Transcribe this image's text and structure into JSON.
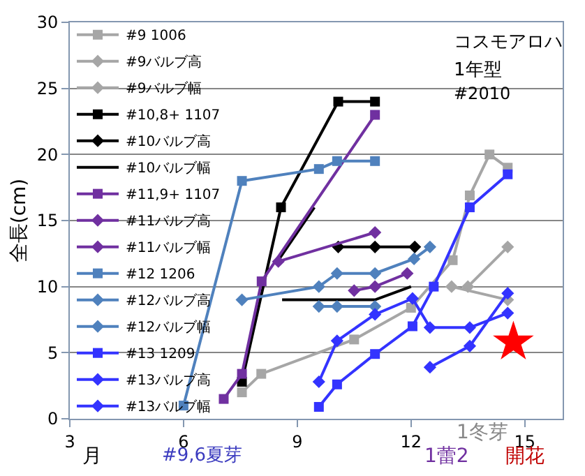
{
  "chart_data": {
    "type": "line",
    "ylabel": "全長(cm)",
    "xlim": [
      3,
      16
    ],
    "ylim": [
      0,
      30
    ],
    "xticks": [
      3,
      6,
      9,
      12,
      15
    ],
    "yticks": [
      0,
      5,
      10,
      15,
      20,
      25,
      30
    ],
    "grid": "y",
    "legend": "left",
    "line_style": "solid",
    "annotations": [
      "コスモアロハ",
      "1年型",
      "#2010",
      "月",
      "#9,6夏芽",
      "1冬芽",
      "1蕾2",
      "開花"
    ],
    "series": [
      {
        "name": "#9 1006",
        "color": "#a6a6a6",
        "marker": "square",
        "x": [
          7.54,
          8.05,
          10.5,
          12.0,
          13.1,
          13.55,
          14.07,
          14.55
        ],
        "values": [
          2.0,
          3.4,
          6.0,
          8.4,
          12.0,
          16.9,
          20.0,
          19.0
        ]
      },
      {
        "name": "#9バルブ高",
        "color": "#a6a6a6",
        "marker": "diamond",
        "x": [
          13.5,
          14.55
        ],
        "values": [
          10.0,
          13.0
        ]
      },
      {
        "name": "#9バルブ幅",
        "color": "#a6a6a6",
        "marker": "diamond",
        "x": [
          13.07,
          14.55
        ],
        "values": [
          10.0,
          9.0
        ]
      },
      {
        "name": "#10,8+ 1107",
        "color": "#000000",
        "marker": "square",
        "x": [
          7.54,
          8.57,
          10.08,
          11.05
        ],
        "values": [
          2.8,
          16.0,
          24.0,
          24.0
        ]
      },
      {
        "name": "#10バルブ高",
        "color": "#000000",
        "marker": "diamond",
        "x": [
          10.08,
          11.05,
          12.1
        ],
        "values": [
          13.0,
          13.0,
          13.0
        ]
      },
      {
        "name": "#10バルブ幅",
        "color": "#000000",
        "marker": "none",
        "x": [
          8.5,
          9.45,
          9.0,
          8.6,
          11.05,
          12.0
        ],
        "values": [
          12.0,
          16.0,
          null,
          9.0,
          9.0,
          10.0
        ]
      },
      {
        "name": "#11,9+ 1107",
        "color": "#7030a0",
        "marker": "square",
        "x": [
          7.06,
          7.54,
          8.06,
          11.05
        ],
        "values": [
          1.5,
          3.4,
          10.4,
          23.0
        ]
      },
      {
        "name": "#11バルブ高",
        "color": "#7030a0",
        "marker": "diamond",
        "x": [
          10.5,
          11.05,
          11.9
        ],
        "values": [
          9.7,
          10.0,
          11.0
        ]
      },
      {
        "name": "#11バルブ幅",
        "color": "#7030a0",
        "marker": "diamond",
        "x": [
          8.5,
          11.05
        ],
        "values": [
          11.9,
          14.1
        ]
      },
      {
        "name": "#12 1206",
        "color": "#4f81bd",
        "marker": "square",
        "x": [
          6.0,
          7.54,
          9.57,
          10.05,
          11.05
        ],
        "values": [
          1.0,
          18.0,
          18.9,
          19.5,
          19.5
        ]
      },
      {
        "name": "#12バルブ高",
        "color": "#4f81bd",
        "marker": "diamond",
        "x": [
          9.57,
          10.05,
          11.05
        ],
        "values": [
          8.5,
          8.5,
          8.5
        ]
      },
      {
        "name": "#12バルブ幅",
        "color": "#4f81bd",
        "marker": "diamond",
        "x": [
          7.54,
          9.57,
          10.05,
          11.05,
          12.08,
          12.5
        ],
        "values": [
          9.0,
          10.0,
          11.0,
          11.0,
          12.1,
          13.0
        ]
      },
      {
        "name": "#13 1209",
        "color": "#3333ff",
        "marker": "square",
        "x": [
          9.57,
          10.05,
          11.05,
          12.04,
          12.6,
          13.55,
          14.55
        ],
        "values": [
          0.9,
          2.6,
          4.9,
          7.0,
          10.0,
          16.0,
          18.5
        ]
      },
      {
        "name": "#13バルブ高",
        "color": "#3333ff",
        "marker": "diamond",
        "x": [
          12.5,
          13.55,
          14.55
        ],
        "values": [
          3.9,
          5.5,
          9.5
        ]
      },
      {
        "name": "#13バルブ幅",
        "color": "#3333ff",
        "marker": "diamond",
        "x": [
          9.57,
          10.05,
          11.05,
          12.04,
          12.5,
          13.55,
          14.55
        ],
        "values": [
          2.8,
          5.9,
          7.9,
          9.1,
          6.9,
          6.9,
          8.0
        ]
      },
      {
        "type": "scatter",
        "color": "#ff0000",
        "marker": "star",
        "x": [
          14.7
        ],
        "values": [
          5.8
        ]
      }
    ]
  }
}
